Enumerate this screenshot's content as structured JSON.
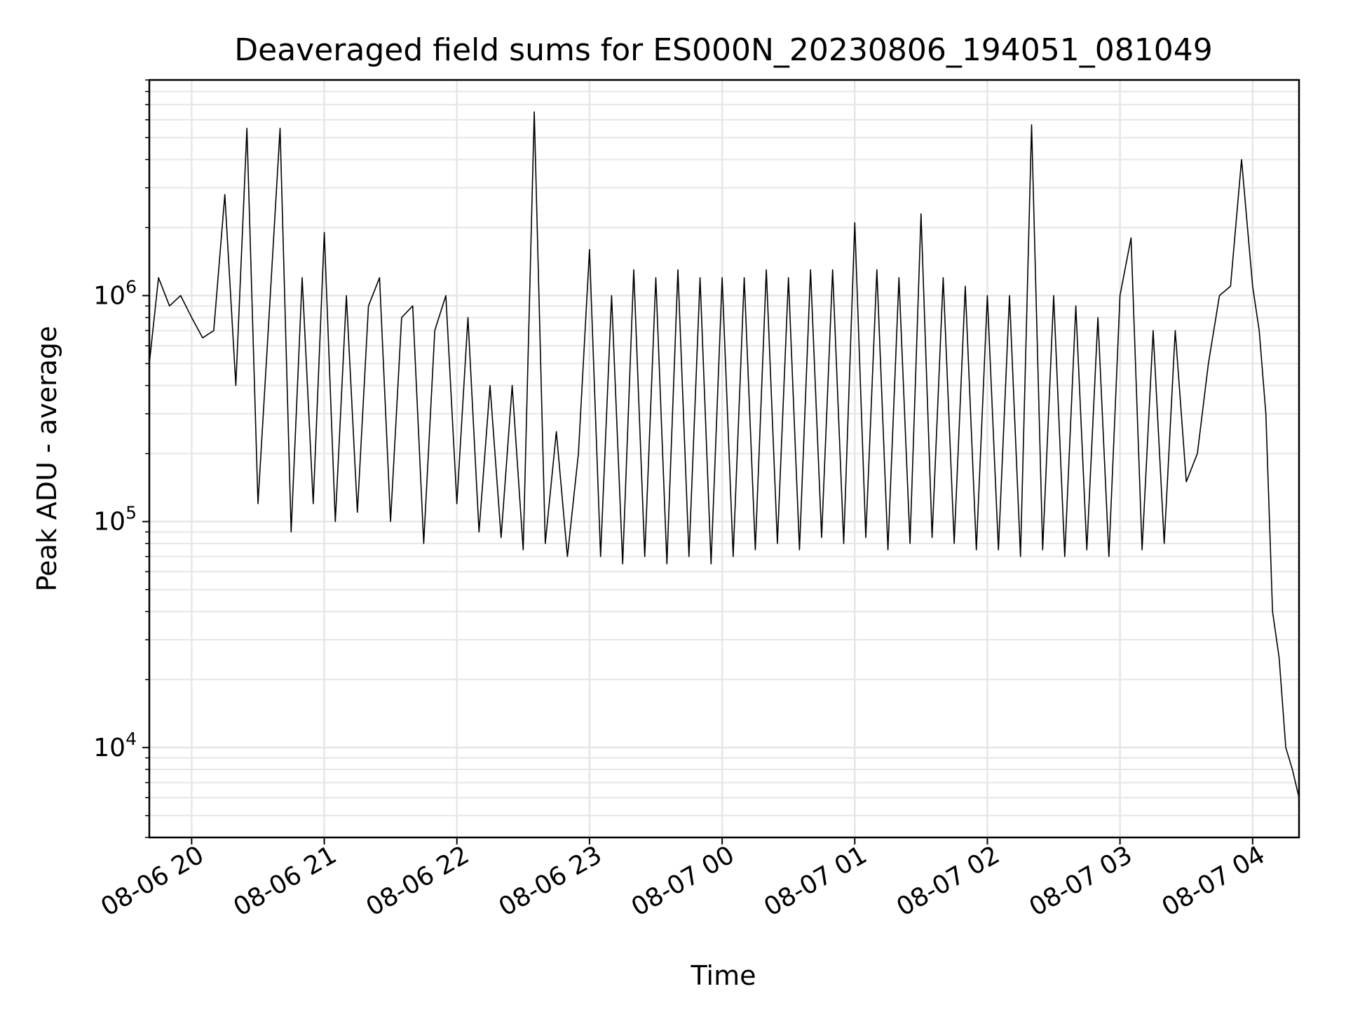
{
  "chart_data": {
    "type": "line",
    "title": "Deaveraged field sums for ES000N_20230806_194051_081049",
    "xlabel": "Time",
    "ylabel": "Peak ADU - average",
    "yscale": "log",
    "grid": true,
    "xlim": [
      "2023-08-06 19:40:51",
      "2023-08-07 04:21:00"
    ],
    "ylim": [
      4000,
      9000000
    ],
    "xticks": [
      "08-06 20",
      "08-06 21",
      "08-06 22",
      "08-06 23",
      "08-07 00",
      "08-07 01",
      "08-07 02",
      "08-07 03",
      "08-07 04"
    ],
    "yticks": [
      {
        "base": "10",
        "exp": "4"
      },
      {
        "base": "10",
        "exp": "5"
      },
      {
        "base": "10",
        "exp": "6"
      }
    ],
    "line_color": "#000000",
    "series": [
      {
        "x": [
          "2023-08-06 19:40:51",
          "2023-08-06 19:45:00",
          "2023-08-06 19:50:00",
          "2023-08-06 19:55:00",
          "2023-08-06 20:00:00",
          "2023-08-06 20:05:00",
          "2023-08-06 20:10:00",
          "2023-08-06 20:15:00",
          "2023-08-06 20:20:00",
          "2023-08-06 20:25:00",
          "2023-08-06 20:30:00",
          "2023-08-06 20:35:00",
          "2023-08-06 20:40:00",
          "2023-08-06 20:45:00",
          "2023-08-06 20:50:00",
          "2023-08-06 20:55:00",
          "2023-08-06 21:00:00",
          "2023-08-06 21:05:00",
          "2023-08-06 21:10:00",
          "2023-08-06 21:15:00",
          "2023-08-06 21:20:00",
          "2023-08-06 21:25:00",
          "2023-08-06 21:30:00",
          "2023-08-06 21:35:00",
          "2023-08-06 21:40:00",
          "2023-08-06 21:45:00",
          "2023-08-06 21:50:00",
          "2023-08-06 21:55:00",
          "2023-08-06 22:00:00",
          "2023-08-06 22:05:00",
          "2023-08-06 22:10:00",
          "2023-08-06 22:15:00",
          "2023-08-06 22:20:00",
          "2023-08-06 22:25:00",
          "2023-08-06 22:30:00",
          "2023-08-06 22:35:00",
          "2023-08-06 22:40:00",
          "2023-08-06 22:45:00",
          "2023-08-06 22:50:00",
          "2023-08-06 22:55:00",
          "2023-08-06 23:00:00",
          "2023-08-06 23:05:00",
          "2023-08-06 23:10:00",
          "2023-08-06 23:15:00",
          "2023-08-06 23:20:00",
          "2023-08-06 23:25:00",
          "2023-08-06 23:30:00",
          "2023-08-06 23:35:00",
          "2023-08-06 23:40:00",
          "2023-08-06 23:45:00",
          "2023-08-06 23:50:00",
          "2023-08-06 23:55:00",
          "2023-08-07 00:00:00",
          "2023-08-07 00:05:00",
          "2023-08-07 00:10:00",
          "2023-08-07 00:15:00",
          "2023-08-07 00:20:00",
          "2023-08-07 00:25:00",
          "2023-08-07 00:30:00",
          "2023-08-07 00:35:00",
          "2023-08-07 00:40:00",
          "2023-08-07 00:45:00",
          "2023-08-07 00:50:00",
          "2023-08-07 00:55:00",
          "2023-08-07 01:00:00",
          "2023-08-07 01:05:00",
          "2023-08-07 01:10:00",
          "2023-08-07 01:15:00",
          "2023-08-07 01:20:00",
          "2023-08-07 01:25:00",
          "2023-08-07 01:30:00",
          "2023-08-07 01:35:00",
          "2023-08-07 01:40:00",
          "2023-08-07 01:45:00",
          "2023-08-07 01:50:00",
          "2023-08-07 01:55:00",
          "2023-08-07 02:00:00",
          "2023-08-07 02:05:00",
          "2023-08-07 02:10:00",
          "2023-08-07 02:15:00",
          "2023-08-07 02:20:00",
          "2023-08-07 02:25:00",
          "2023-08-07 02:30:00",
          "2023-08-07 02:35:00",
          "2023-08-07 02:40:00",
          "2023-08-07 02:45:00",
          "2023-08-07 02:50:00",
          "2023-08-07 02:55:00",
          "2023-08-07 03:00:00",
          "2023-08-07 03:05:00",
          "2023-08-07 03:10:00",
          "2023-08-07 03:15:00",
          "2023-08-07 03:20:00",
          "2023-08-07 03:25:00",
          "2023-08-07 03:30:00",
          "2023-08-07 03:35:00",
          "2023-08-07 03:40:00",
          "2023-08-07 03:45:00",
          "2023-08-07 03:50:00",
          "2023-08-07 03:55:00",
          "2023-08-07 04:00:00",
          "2023-08-07 04:03:00",
          "2023-08-07 04:06:00",
          "2023-08-07 04:09:00",
          "2023-08-07 04:12:00",
          "2023-08-07 04:15:00",
          "2023-08-07 04:18:00",
          "2023-08-07 04:21:00"
        ],
        "y": [
          500000,
          1200000,
          900000,
          1000000,
          800000,
          650000,
          700000,
          2800000,
          400000,
          5500000,
          120000,
          800000,
          5500000,
          90000,
          1200000,
          120000,
          1900000,
          100000,
          1000000,
          110000,
          900000,
          1200000,
          100000,
          800000,
          900000,
          80000,
          700000,
          1000000,
          120000,
          800000,
          90000,
          400000,
          85000,
          400000,
          75000,
          6500000,
          80000,
          250000,
          70000,
          200000,
          1600000,
          70000,
          1000000,
          65000,
          1300000,
          70000,
          1200000,
          65000,
          1300000,
          70000,
          1200000,
          65000,
          1200000,
          70000,
          1200000,
          75000,
          1300000,
          80000,
          1200000,
          75000,
          1300000,
          85000,
          1300000,
          80000,
          2100000,
          85000,
          1300000,
          75000,
          1200000,
          80000,
          2300000,
          85000,
          1200000,
          80000,
          1100000,
          75000,
          1000000,
          75000,
          1000000,
          70000,
          5700000,
          75000,
          1000000,
          70000,
          900000,
          75000,
          800000,
          70000,
          1000000,
          1800000,
          75000,
          700000,
          80000,
          700000,
          150000,
          200000,
          500000,
          1000000,
          1100000,
          4000000,
          1100000,
          700000,
          300000,
          40000,
          25000,
          10000,
          8000,
          6000
        ]
      }
    ]
  }
}
